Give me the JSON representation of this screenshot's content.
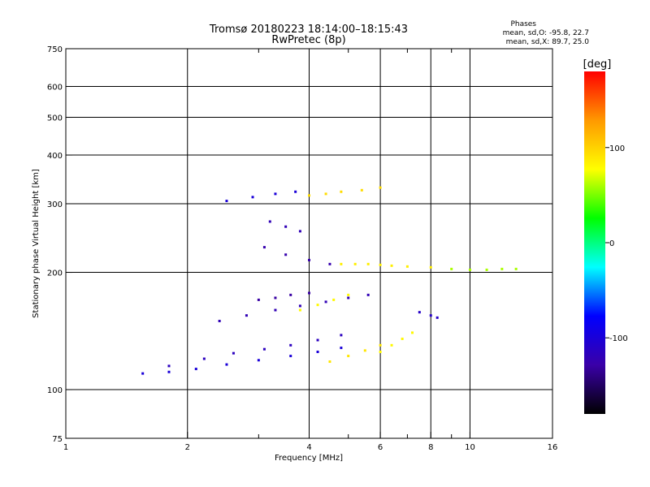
{
  "chart_data": {
    "type": "scatter",
    "title": "Tromsø 20180223 18:14:00–18:15:43",
    "subtitle": "RwPretec (8p)",
    "xlabel": "Frequency [MHz]",
    "ylabel": "Stationary phase Virtual Height [km]",
    "x_scale": "log",
    "y_scale": "log",
    "xlim": [
      1,
      16
    ],
    "ylim": [
      75,
      750
    ],
    "x_ticks": [
      1,
      2,
      4,
      6,
      8,
      10,
      16
    ],
    "x_tick_labels": [
      "1",
      "2",
      "4",
      "6",
      "8",
      "10",
      "16"
    ],
    "x_minor_ticks": [
      3,
      5,
      7,
      9
    ],
    "y_ticks": [
      75,
      100,
      200,
      300,
      400,
      500,
      600,
      750
    ],
    "y_tick_labels": [
      "75",
      "100",
      "200",
      "300",
      "400",
      "500",
      "600",
      "750"
    ],
    "grid": true,
    "stats": {
      "heading": "Phases",
      "line_o": "mean, sd,O: -95.8, 22.7",
      "line_x": "mean, sd,X:  89.7, 25.0"
    },
    "colorbar": {
      "title": "[deg]",
      "range": [
        -180,
        180
      ],
      "ticks": [
        100,
        0,
        -100
      ],
      "tick_labels": [
        "100",
        "0",
        "-100"
      ],
      "colors": [
        "#ff0000",
        "#ff9900",
        "#ffff00",
        "#00ff00",
        "#00ffff",
        "#0000ff",
        "#3a00a8",
        "#000000"
      ]
    },
    "traces": [
      {
        "name": "",
        "phase": -100,
        "x": [
          1.55,
          1.8,
          2.1,
          2.5,
          3.0,
          3.6,
          4.2,
          4.8
        ],
        "y": [
          110,
          111,
          113,
          116,
          119,
          122,
          125,
          128
        ]
      },
      {
        "name": "",
        "phase": -115,
        "x": [
          1.8,
          2.2,
          2.6,
          3.1,
          3.6,
          4.2,
          4.8
        ],
        "y": [
          115,
          120,
          124,
          127,
          130,
          134,
          138
        ]
      },
      {
        "name": "",
        "phase": -120,
        "x": [
          2.4,
          2.8,
          3.3,
          3.8,
          4.4,
          5.0,
          5.6
        ],
        "y": [
          150,
          155,
          160,
          164,
          168,
          172,
          175
        ]
      },
      {
        "name": "",
        "phase": -130,
        "x": [
          3.0,
          3.3,
          3.6,
          4.0
        ],
        "y": [
          170,
          172,
          175,
          177
        ]
      },
      {
        "name": "",
        "phase": -125,
        "x": [
          3.1,
          3.5,
          4.0,
          4.5
        ],
        "y": [
          232,
          222,
          215,
          210
        ]
      },
      {
        "name": "",
        "phase": -120,
        "x": [
          3.2,
          3.5,
          3.8
        ],
        "y": [
          270,
          262,
          255
        ]
      },
      {
        "name": "",
        "phase": -100,
        "x": [
          2.5,
          2.9,
          3.3,
          3.7
        ],
        "y": [
          305,
          312,
          318,
          322
        ]
      },
      {
        "name": "",
        "phase": 85,
        "x": [
          4.8,
          5.2,
          5.6,
          6.0,
          6.4,
          7.0,
          8.0
        ],
        "y": [
          210,
          210,
          210,
          209,
          208,
          207,
          206
        ]
      },
      {
        "name": "",
        "phase": 90,
        "x": [
          4.5,
          5.0,
          5.5,
          6.0
        ],
        "y": [
          118,
          122,
          126,
          130
        ]
      },
      {
        "name": "",
        "phase": 80,
        "x": [
          3.8,
          4.2,
          4.6,
          5.0
        ],
        "y": [
          160,
          165,
          170,
          175
        ]
      },
      {
        "name": "",
        "phase": 95,
        "x": [
          4.0,
          4.4,
          4.8,
          5.4,
          6.0
        ],
        "y": [
          315,
          318,
          322,
          325,
          330
        ]
      },
      {
        "name": "",
        "phase": -110,
        "x": [
          7.5,
          8.0,
          8.3
        ],
        "y": [
          158,
          155,
          153
        ]
      },
      {
        "name": "",
        "phase": 80,
        "x": [
          6.0,
          6.4,
          6.8,
          7.2
        ],
        "y": [
          125,
          130,
          135,
          140
        ]
      },
      {
        "name": "",
        "phase": 60,
        "x": [
          9.0,
          10.0,
          11.0,
          12.0,
          13.0
        ],
        "y": [
          204,
          203,
          203,
          204,
          204
        ]
      }
    ]
  }
}
